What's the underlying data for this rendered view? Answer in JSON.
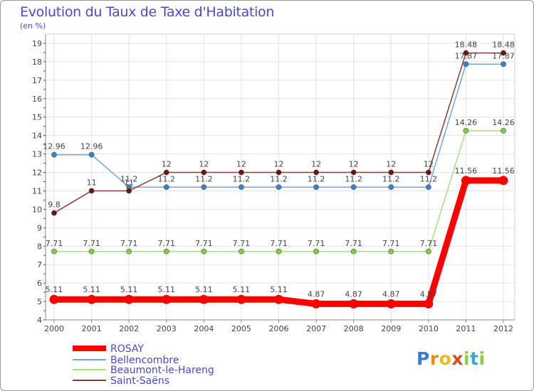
{
  "chart_data": {
    "type": "line",
    "title": "Evolution du Taux de Taxe d'Habitation",
    "subtitle": "(en %)",
    "x": [
      "2000",
      "2001",
      "2002",
      "2003",
      "2004",
      "2005",
      "2006",
      "2007",
      "2008",
      "2009",
      "2010",
      "2011",
      "2012"
    ],
    "ylim": [
      4,
      19
    ],
    "yticks": [
      "4",
      "5",
      "6",
      "7",
      "8",
      "9",
      "10",
      "11",
      "12",
      "13",
      "14",
      "15",
      "16",
      "17",
      "18",
      "19"
    ],
    "grid": true,
    "legend_position": "bottom-left",
    "series": [
      {
        "name": "ROSAY",
        "color": "#ff0000",
        "values": [
          5.11,
          5.11,
          5.11,
          5.11,
          5.11,
          5.11,
          5.11,
          4.87,
          4.87,
          4.87,
          4.87,
          11.56,
          11.56
        ],
        "labels": [
          "5.11",
          "5.11",
          "5.11",
          "5.11",
          "5.11",
          "5.11",
          "5.11",
          "4.87",
          "4.87",
          "4.87",
          "4.87",
          "11.56",
          "11.56"
        ]
      },
      {
        "name": "Bellencombre",
        "color": "#6fa7d9",
        "values": [
          12.96,
          12.96,
          11.2,
          11.2,
          11.2,
          11.2,
          11.2,
          11.2,
          11.2,
          11.2,
          11.2,
          17.87,
          17.87
        ],
        "labels": [
          "12.96",
          "12.96",
          "11.2",
          "11.2",
          "11.2",
          "11.2",
          "11.2",
          "11.2",
          "11.2",
          "11.2",
          "11.2",
          "17.87",
          "17.87"
        ]
      },
      {
        "name": "Beaumont-le-Hareng",
        "color": "#a8e07a",
        "values": [
          7.71,
          7.71,
          7.71,
          7.71,
          7.71,
          7.71,
          7.71,
          7.71,
          7.71,
          7.71,
          7.71,
          14.26,
          14.26
        ],
        "labels": [
          "7.71",
          "7.71",
          "7.71",
          "7.71",
          "7.71",
          "7.71",
          "7.71",
          "7.71",
          "7.71",
          "7.71",
          "7.71",
          "14.26",
          "14.26"
        ]
      },
      {
        "name": "Saint-Saëns",
        "color": "#8b3a3a",
        "values": [
          9.8,
          11,
          11,
          12,
          12,
          12,
          12,
          12,
          12,
          12,
          12,
          18.48,
          18.48
        ],
        "labels": [
          "9.8",
          "11",
          "11",
          "12",
          "12",
          "12",
          "12",
          "12",
          "12",
          "12",
          "12",
          "18.48",
          "18.48"
        ]
      }
    ]
  },
  "logo": {
    "letters": [
      "P",
      "r",
      "o",
      "x",
      "i",
      "t",
      "i"
    ]
  }
}
